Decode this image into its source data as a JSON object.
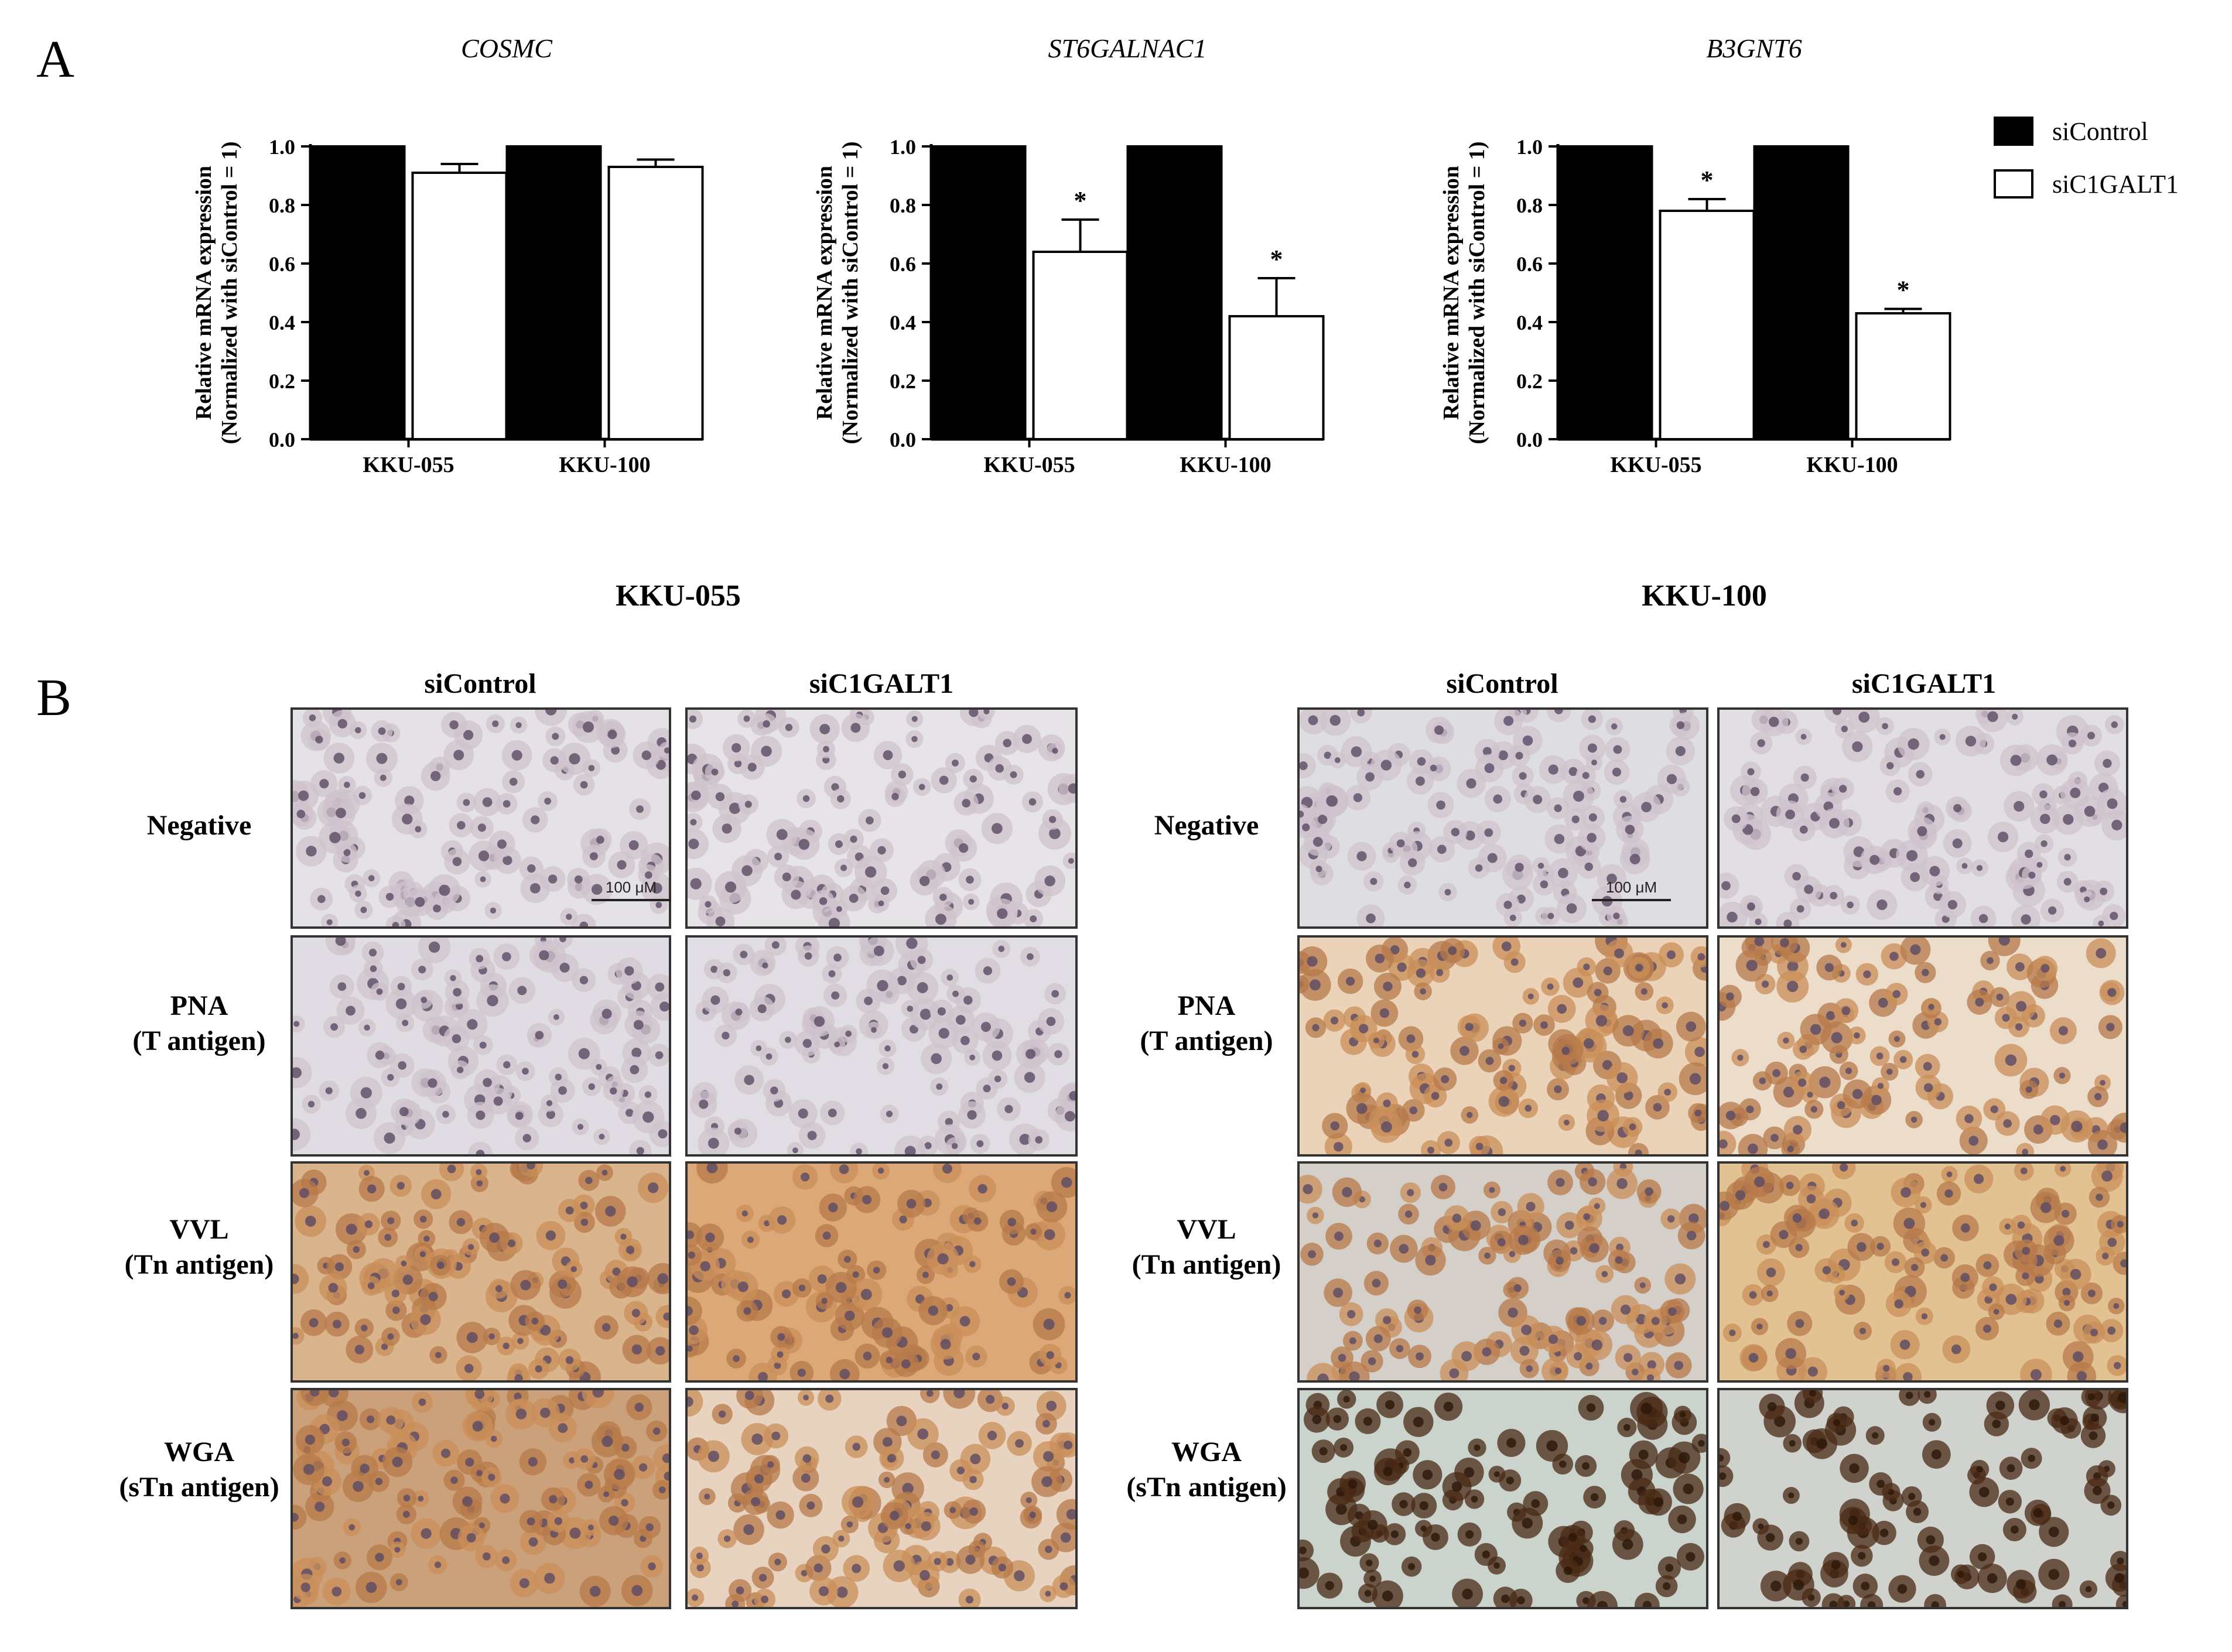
{
  "panel_a_letter": "A",
  "panel_b_letter": "B",
  "chart_data": [
    {
      "type": "bar",
      "title": "COSMC",
      "ylabel_line1": "Relative mRNA expression",
      "ylabel_line2": "(Normalized with siControl = 1)",
      "categories": [
        "KKU-055",
        "KKU-100"
      ],
      "series": [
        {
          "name": "siControl",
          "values": [
            1.0,
            1.0
          ],
          "errors": [
            0,
            0
          ]
        },
        {
          "name": "siC1GALT1",
          "values": [
            0.91,
            0.93
          ],
          "errors": [
            0.03,
            0.025
          ]
        }
      ],
      "significance": [
        [
          "",
          ""
        ],
        [
          "",
          ""
        ]
      ],
      "ylim": [
        0,
        1.0
      ],
      "yticks": [
        "0.0",
        "0.2",
        "0.4",
        "0.6",
        "0.8",
        "1.0"
      ]
    },
    {
      "type": "bar",
      "title": "ST6GALNAC1",
      "ylabel_line1": "Relative mRNA expression",
      "ylabel_line2": "(Normalized with siControl = 1)",
      "categories": [
        "KKU-055",
        "KKU-100"
      ],
      "series": [
        {
          "name": "siControl",
          "values": [
            1.0,
            1.0
          ],
          "errors": [
            0,
            0
          ]
        },
        {
          "name": "siC1GALT1",
          "values": [
            0.64,
            0.42
          ],
          "errors": [
            0.11,
            0.13
          ]
        }
      ],
      "significance": [
        [
          "",
          ""
        ],
        [
          "*",
          "*"
        ]
      ],
      "ylim": [
        0,
        1.0
      ],
      "yticks": [
        "0.0",
        "0.2",
        "0.4",
        "0.6",
        "0.8",
        "1.0"
      ]
    },
    {
      "type": "bar",
      "title": "B3GNT6",
      "ylabel_line1": "Relative mRNA expression",
      "ylabel_line2": "(Normalized with siControl = 1)",
      "categories": [
        "KKU-055",
        "KKU-100"
      ],
      "series": [
        {
          "name": "siControl",
          "values": [
            1.0,
            1.0
          ],
          "errors": [
            0,
            0
          ]
        },
        {
          "name": "siC1GALT1",
          "values": [
            0.78,
            0.43
          ],
          "errors": [
            0.04,
            0.015
          ]
        }
      ],
      "significance": [
        [
          "",
          ""
        ],
        [
          "*",
          "*"
        ]
      ],
      "ylim": [
        0,
        1.0
      ],
      "yticks": [
        "0.0",
        "0.2",
        "0.4",
        "0.6",
        "0.8",
        "1.0"
      ]
    }
  ],
  "legend": {
    "placement": "top-right",
    "items": [
      {
        "label": "siControl",
        "color": "#000000"
      },
      {
        "label": "siC1GALT1",
        "color": "#ffffff"
      }
    ]
  },
  "panel_b": {
    "cell_lines": [
      {
        "title": "KKU-055",
        "columns": [
          "siControl",
          "siC1GALT1"
        ]
      },
      {
        "title": "KKU-100",
        "columns": [
          "siControl",
          "siC1GALT1"
        ]
      }
    ],
    "rows": [
      {
        "line1": "Negative",
        "line2": ""
      },
      {
        "line1": "PNA",
        "line2": "(T antigen)"
      },
      {
        "line1": "VVL",
        "line2": "(Tn antigen)"
      },
      {
        "line1": "WGA",
        "line2": "(sTn antigen)"
      }
    ],
    "scale_label": "100 μM",
    "image_colors": {
      "kku055": [
        [
          "#e4e2e6",
          "#e7e4e8"
        ],
        [
          "#dfdde3",
          "#e0dee4"
        ],
        [
          "#d9b48c",
          "#dca877"
        ],
        [
          "#caa17a",
          "#e8d3c0"
        ]
      ],
      "kku100": [
        [
          "#dedde2",
          "#e1dfe4"
        ],
        [
          "#ead3b8",
          "#ecdcca"
        ],
        [
          "#d5cfca",
          "#e2c193"
        ],
        [
          "#cbd3cd",
          "#cfd2cd"
        ]
      ]
    }
  }
}
